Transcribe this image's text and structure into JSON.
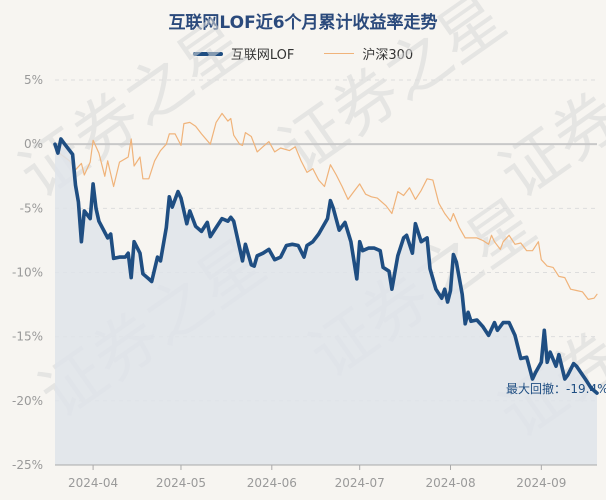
{
  "chart_data": {
    "type": "line",
    "title": "互联网LOF近6个月累计收益率走势",
    "watermark": "证券之星",
    "ylim": [
      -25,
      5
    ],
    "yticks": [
      {
        "value": 5,
        "label": "5%"
      },
      {
        "value": 0,
        "label": "0%"
      },
      {
        "value": -5,
        "label": "-5%"
      },
      {
        "value": -10,
        "label": "-10%"
      },
      {
        "value": -15,
        "label": "-15%"
      },
      {
        "value": -20,
        "label": "-20%"
      },
      {
        "value": -25,
        "label": "-25%"
      }
    ],
    "xlim": [
      "2024-03-19",
      "2024-09-20"
    ],
    "xticks": [
      {
        "date": "2024-04-01",
        "label": "2024-04"
      },
      {
        "date": "2024-05-01",
        "label": "2024-05"
      },
      {
        "date": "2024-06-01",
        "label": "2024-06"
      },
      {
        "date": "2024-07-01",
        "label": "2024-07"
      },
      {
        "date": "2024-08-01",
        "label": "2024-08"
      },
      {
        "date": "2024-09-01",
        "label": "2024-09"
      }
    ],
    "grid": true,
    "legend_position": "top-center",
    "annotation": {
      "text": "最大回撤：-19.4%",
      "date": "2024-09-13",
      "value": -19.4
    },
    "series": [
      {
        "name": "互联网LOF",
        "color": "#1f4e82",
        "fill": true,
        "points": [
          [
            "2024-03-19",
            0.0
          ],
          [
            "2024-03-20",
            -0.7
          ],
          [
            "2024-03-21",
            0.4
          ],
          [
            "2024-03-22",
            0.1
          ],
          [
            "2024-03-25",
            -0.8
          ],
          [
            "2024-03-26",
            -3.2
          ],
          [
            "2024-03-27",
            -4.5
          ],
          [
            "2024-03-28",
            -7.6
          ],
          [
            "2024-03-29",
            -5.2
          ],
          [
            "2024-03-31",
            -5.8
          ],
          [
            "2024-04-01",
            -3.1
          ],
          [
            "2024-04-02",
            -5.0
          ],
          [
            "2024-04-03",
            -6.0
          ],
          [
            "2024-04-06",
            -7.3
          ],
          [
            "2024-04-07",
            -7.0
          ],
          [
            "2024-04-08",
            -8.9
          ],
          [
            "2024-04-10",
            -8.8
          ],
          [
            "2024-04-12",
            -8.8
          ],
          [
            "2024-04-13",
            -8.5
          ],
          [
            "2024-04-14",
            -10.4
          ],
          [
            "2024-04-15",
            -7.6
          ],
          [
            "2024-04-17",
            -8.5
          ],
          [
            "2024-04-18",
            -10.1
          ],
          [
            "2024-04-20",
            -10.5
          ],
          [
            "2024-04-21",
            -10.7
          ],
          [
            "2024-04-23",
            -8.8
          ],
          [
            "2024-04-24",
            -9.1
          ],
          [
            "2024-04-26",
            -6.5
          ],
          [
            "2024-04-27",
            -4.1
          ],
          [
            "2024-04-28",
            -4.9
          ],
          [
            "2024-04-30",
            -3.7
          ],
          [
            "2024-05-01",
            -4.2
          ],
          [
            "2024-05-03",
            -6.2
          ],
          [
            "2024-05-04",
            -5.2
          ],
          [
            "2024-05-06",
            -6.4
          ],
          [
            "2024-05-08",
            -6.8
          ],
          [
            "2024-05-10",
            -6.1
          ],
          [
            "2024-05-11",
            -7.2
          ],
          [
            "2024-05-13",
            -6.5
          ],
          [
            "2024-05-15",
            -5.8
          ],
          [
            "2024-05-17",
            -6.0
          ],
          [
            "2024-05-18",
            -5.7
          ],
          [
            "2024-05-19",
            -6.0
          ],
          [
            "2024-05-22",
            -9.1
          ],
          [
            "2024-05-23",
            -7.8
          ],
          [
            "2024-05-25",
            -9.4
          ],
          [
            "2024-05-26",
            -9.5
          ],
          [
            "2024-05-27",
            -8.7
          ],
          [
            "2024-05-29",
            -8.5
          ],
          [
            "2024-05-31",
            -8.2
          ],
          [
            "2024-06-02",
            -9.0
          ],
          [
            "2024-06-04",
            -8.8
          ],
          [
            "2024-06-06",
            -7.9
          ],
          [
            "2024-06-08",
            -7.8
          ],
          [
            "2024-06-10",
            -7.9
          ],
          [
            "2024-06-12",
            -8.8
          ],
          [
            "2024-06-13",
            -7.9
          ],
          [
            "2024-06-15",
            -7.6
          ],
          [
            "2024-06-17",
            -7.0
          ],
          [
            "2024-06-20",
            -5.8
          ],
          [
            "2024-06-21",
            -4.4
          ],
          [
            "2024-06-22",
            -5.0
          ],
          [
            "2024-06-24",
            -6.7
          ],
          [
            "2024-06-26",
            -6.1
          ],
          [
            "2024-06-28",
            -7.6
          ],
          [
            "2024-06-30",
            -10.5
          ],
          [
            "2024-07-01",
            -7.6
          ],
          [
            "2024-07-02",
            -8.3
          ],
          [
            "2024-07-04",
            -8.1
          ],
          [
            "2024-07-06",
            -8.1
          ],
          [
            "2024-07-08",
            -8.3
          ],
          [
            "2024-07-09",
            -9.6
          ],
          [
            "2024-07-11",
            -9.9
          ],
          [
            "2024-07-12",
            -11.3
          ],
          [
            "2024-07-14",
            -8.7
          ],
          [
            "2024-07-16",
            -7.3
          ],
          [
            "2024-07-17",
            -7.1
          ],
          [
            "2024-07-19",
            -8.5
          ],
          [
            "2024-07-20",
            -6.2
          ],
          [
            "2024-07-22",
            -7.6
          ],
          [
            "2024-07-24",
            -7.3
          ],
          [
            "2024-07-25",
            -9.7
          ],
          [
            "2024-07-27",
            -11.3
          ],
          [
            "2024-07-29",
            -12.0
          ],
          [
            "2024-07-30",
            -11.3
          ],
          [
            "2024-07-31",
            -12.3
          ],
          [
            "2024-08-01",
            -11.4
          ],
          [
            "2024-08-02",
            -8.6
          ],
          [
            "2024-08-03",
            -9.2
          ],
          [
            "2024-08-05",
            -11.7
          ],
          [
            "2024-08-06",
            -14.0
          ],
          [
            "2024-08-07",
            -13.1
          ],
          [
            "2024-08-08",
            -13.8
          ],
          [
            "2024-08-10",
            -13.7
          ],
          [
            "2024-08-12",
            -14.2
          ],
          [
            "2024-08-14",
            -14.9
          ],
          [
            "2024-08-16",
            -13.9
          ],
          [
            "2024-08-17",
            -14.5
          ],
          [
            "2024-08-19",
            -13.9
          ],
          [
            "2024-08-21",
            -13.9
          ],
          [
            "2024-08-23",
            -14.9
          ],
          [
            "2024-08-25",
            -16.7
          ],
          [
            "2024-08-27",
            -16.6
          ],
          [
            "2024-08-29",
            -18.3
          ],
          [
            "2024-08-30",
            -17.8
          ],
          [
            "2024-09-01",
            -17.0
          ],
          [
            "2024-09-02",
            -14.5
          ],
          [
            "2024-09-03",
            -17.0
          ],
          [
            "2024-09-04",
            -16.2
          ],
          [
            "2024-09-06",
            -17.3
          ],
          [
            "2024-09-07",
            -16.4
          ],
          [
            "2024-09-09",
            -18.3
          ],
          [
            "2024-09-10",
            -18.0
          ],
          [
            "2024-09-12",
            -17.1
          ],
          [
            "2024-09-13",
            -17.3
          ],
          [
            "2024-09-16",
            -18.3
          ],
          [
            "2024-09-18",
            -19.0
          ],
          [
            "2024-09-19",
            -19.2
          ],
          [
            "2024-09-20",
            -19.4
          ]
        ]
      },
      {
        "name": "沪深300",
        "color": "#f0b37a",
        "fill": false,
        "points": [
          [
            "2024-03-19",
            0.0
          ],
          [
            "2024-03-21",
            -0.8
          ],
          [
            "2024-03-24",
            -1.3
          ],
          [
            "2024-03-26",
            -2.0
          ],
          [
            "2024-03-28",
            -1.5
          ],
          [
            "2024-03-29",
            -2.4
          ],
          [
            "2024-03-31",
            -1.4
          ],
          [
            "2024-04-01",
            0.3
          ],
          [
            "2024-04-03",
            -0.7
          ],
          [
            "2024-04-05",
            -2.5
          ],
          [
            "2024-04-06",
            -1.3
          ],
          [
            "2024-04-08",
            -3.3
          ],
          [
            "2024-04-10",
            -1.4
          ],
          [
            "2024-04-13",
            -1.0
          ],
          [
            "2024-04-14",
            0.4
          ],
          [
            "2024-04-15",
            -1.7
          ],
          [
            "2024-04-17",
            -1.0
          ],
          [
            "2024-04-18",
            -2.7
          ],
          [
            "2024-04-20",
            -2.7
          ],
          [
            "2024-04-22",
            -1.3
          ],
          [
            "2024-04-24",
            -0.5
          ],
          [
            "2024-04-26",
            0.0
          ],
          [
            "2024-04-27",
            0.8
          ],
          [
            "2024-04-29",
            0.8
          ],
          [
            "2024-05-01",
            -0.1
          ],
          [
            "2024-05-02",
            1.6
          ],
          [
            "2024-05-04",
            1.7
          ],
          [
            "2024-05-06",
            1.4
          ],
          [
            "2024-05-08",
            0.8
          ],
          [
            "2024-05-11",
            0.0
          ],
          [
            "2024-05-13",
            1.7
          ],
          [
            "2024-05-15",
            2.4
          ],
          [
            "2024-05-17",
            1.8
          ],
          [
            "2024-05-18",
            2.0
          ],
          [
            "2024-05-19",
            0.7
          ],
          [
            "2024-05-21",
            0.0
          ],
          [
            "2024-05-22",
            -0.1
          ],
          [
            "2024-05-23",
            0.9
          ],
          [
            "2024-05-25",
            0.6
          ],
          [
            "2024-05-27",
            -0.6
          ],
          [
            "2024-05-29",
            -0.2
          ],
          [
            "2024-05-31",
            0.2
          ],
          [
            "2024-06-02",
            -0.6
          ],
          [
            "2024-06-04",
            -0.3
          ],
          [
            "2024-06-07",
            -0.5
          ],
          [
            "2024-06-09",
            -0.2
          ],
          [
            "2024-06-11",
            -1.3
          ],
          [
            "2024-06-13",
            -2.2
          ],
          [
            "2024-06-15",
            -1.9
          ],
          [
            "2024-06-17",
            -2.8
          ],
          [
            "2024-06-19",
            -3.3
          ],
          [
            "2024-06-21",
            -1.6
          ],
          [
            "2024-06-23",
            -2.4
          ],
          [
            "2024-06-25",
            -3.3
          ],
          [
            "2024-06-27",
            -4.3
          ],
          [
            "2024-06-29",
            -3.7
          ],
          [
            "2024-07-01",
            -3.1
          ],
          [
            "2024-07-03",
            -3.9
          ],
          [
            "2024-07-05",
            -4.1
          ],
          [
            "2024-07-07",
            -4.2
          ],
          [
            "2024-07-10",
            -4.8
          ],
          [
            "2024-07-12",
            -5.4
          ],
          [
            "2024-07-14",
            -3.7
          ],
          [
            "2024-07-16",
            -4.0
          ],
          [
            "2024-07-18",
            -3.4
          ],
          [
            "2024-07-20",
            -4.3
          ],
          [
            "2024-07-22",
            -3.6
          ],
          [
            "2024-07-24",
            -2.7
          ],
          [
            "2024-07-26",
            -2.8
          ],
          [
            "2024-07-28",
            -4.6
          ],
          [
            "2024-07-30",
            -5.4
          ],
          [
            "2024-08-01",
            -6.0
          ],
          [
            "2024-08-02",
            -5.4
          ],
          [
            "2024-08-04",
            -6.5
          ],
          [
            "2024-08-06",
            -7.3
          ],
          [
            "2024-08-08",
            -7.3
          ],
          [
            "2024-08-10",
            -7.3
          ],
          [
            "2024-08-12",
            -7.5
          ],
          [
            "2024-08-14",
            -7.8
          ],
          [
            "2024-08-15",
            -7.1
          ],
          [
            "2024-08-16",
            -7.6
          ],
          [
            "2024-08-18",
            -8.2
          ],
          [
            "2024-08-19",
            -7.6
          ],
          [
            "2024-08-21",
            -7.1
          ],
          [
            "2024-08-23",
            -7.8
          ],
          [
            "2024-08-25",
            -7.7
          ],
          [
            "2024-08-27",
            -8.3
          ],
          [
            "2024-08-29",
            -8.3
          ],
          [
            "2024-08-31",
            -7.6
          ],
          [
            "2024-09-01",
            -9.0
          ],
          [
            "2024-09-03",
            -9.5
          ],
          [
            "2024-09-05",
            -9.6
          ],
          [
            "2024-09-07",
            -10.3
          ],
          [
            "2024-09-09",
            -10.4
          ],
          [
            "2024-09-11",
            -11.3
          ],
          [
            "2024-09-13",
            -11.4
          ],
          [
            "2024-09-15",
            -11.5
          ],
          [
            "2024-09-17",
            -12.1
          ],
          [
            "2024-09-19",
            -12.0
          ],
          [
            "2024-09-20",
            -11.7
          ]
        ]
      }
    ]
  }
}
